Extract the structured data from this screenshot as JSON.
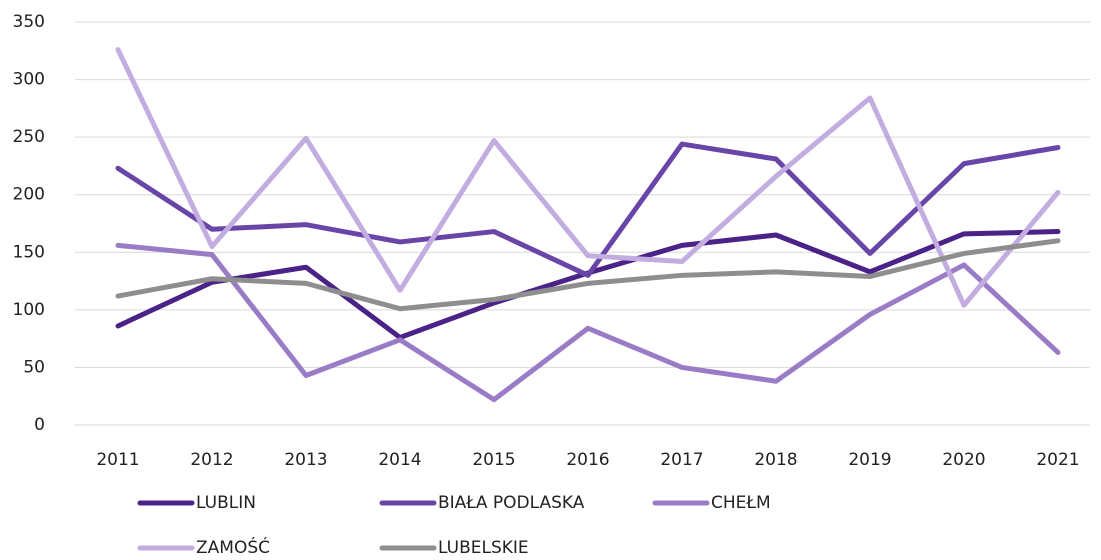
{
  "chart_data": {
    "type": "line",
    "x": [
      2011,
      2012,
      2013,
      2014,
      2015,
      2016,
      2017,
      2018,
      2019,
      2020,
      2021
    ],
    "xlim": [
      2011,
      2021
    ],
    "xticks": [
      2011,
      2012,
      2013,
      2014,
      2015,
      2016,
      2017,
      2018,
      2019,
      2020,
      2021
    ],
    "ylim": [
      0,
      350
    ],
    "yticks": [
      0,
      50,
      100,
      150,
      200,
      250,
      300,
      350
    ],
    "grid": true,
    "series": [
      {
        "name": "LUBLIN",
        "color": "#4a2288",
        "values": [
          86,
          124,
          137,
          76,
          106,
          132,
          156,
          165,
          133,
          166,
          168
        ]
      },
      {
        "name": "BIAŁA PODLASKA",
        "color": "#6a45a8",
        "values": [
          223,
          170,
          174,
          159,
          168,
          130,
          244,
          231,
          149,
          227,
          241
        ]
      },
      {
        "name": "CHEŁM",
        "color": "#9a7bc6",
        "values": [
          156,
          148,
          43,
          74,
          22,
          84,
          50,
          38,
          96,
          139,
          63
        ]
      },
      {
        "name": "ZAMOŚĆ",
        "color": "#c2ace0",
        "values": [
          326,
          155,
          249,
          117,
          247,
          147,
          142,
          216,
          284,
          104,
          202
        ]
      },
      {
        "name": "LUBELSKIE",
        "color": "#8e8e8e",
        "values": [
          112,
          127,
          123,
          101,
          109,
          123,
          130,
          133,
          129,
          149,
          160
        ]
      }
    ]
  }
}
